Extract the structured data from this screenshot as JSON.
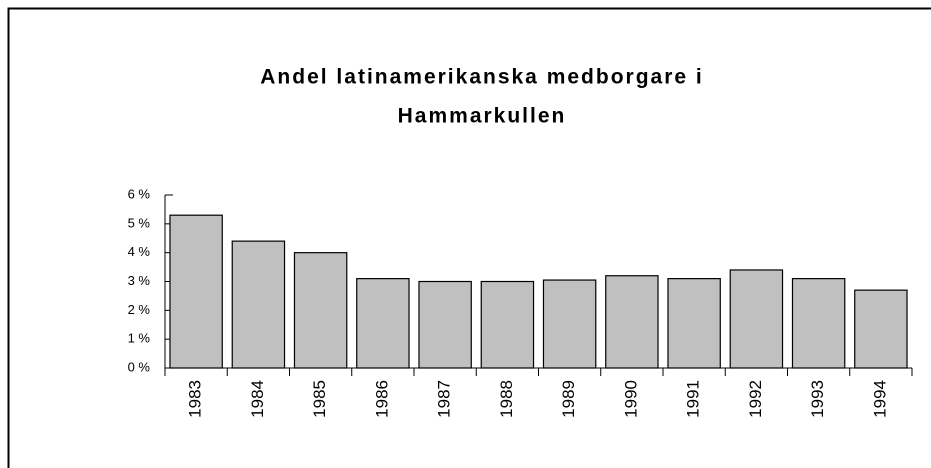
{
  "chart_data": {
    "type": "bar",
    "title": [
      "Andel latinamerikanska medborgare i",
      "Hammarkullen"
    ],
    "categories": [
      "1983",
      "1984",
      "1985",
      "1986",
      "1987",
      "1988",
      "1989",
      "1990",
      "1991",
      "1992",
      "1993",
      "1994"
    ],
    "values": [
      5.3,
      4.4,
      4.0,
      3.1,
      3.0,
      3.0,
      3.05,
      3.2,
      3.1,
      3.4,
      3.1,
      2.7
    ],
    "color": "#c0c0c0",
    "ylim": [
      0,
      6
    ],
    "yticks": [
      {
        "value": 0,
        "label": "0 %"
      },
      {
        "value": 1,
        "label": "1 %"
      },
      {
        "value": 2,
        "label": "2 %"
      },
      {
        "value": 3,
        "label": "3 %"
      },
      {
        "value": 4,
        "label": "4 %"
      },
      {
        "value": 5,
        "label": "5 %"
      },
      {
        "value": 6,
        "label": "6 %"
      }
    ],
    "grid": false
  }
}
